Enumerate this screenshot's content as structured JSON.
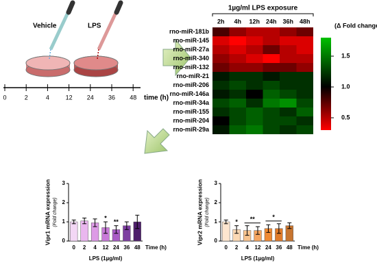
{
  "diagram": {
    "vehicle_label": "Vehicle",
    "lps_label": "LPS",
    "timeline_ticks": [
      "0",
      "2",
      "4",
      "12",
      "24",
      "36",
      "48"
    ],
    "time_label": "time (h)"
  },
  "chart_data": [
    {
      "type": "heatmap",
      "title": "1µg/ml LPS exposure",
      "colorbar_title": "(Δ Fold change)",
      "columns": [
        "2h",
        "4h",
        "12h",
        "24h",
        "36h",
        "48h"
      ],
      "rows": [
        "rno-miR-181b",
        "rno-miR-145",
        "rno-miR-27a",
        "rno-miR-340",
        "rno-miR-132",
        "rno-miR-21",
        "rno-miR-206",
        "rno-miR-146a",
        "rno-miR-34a",
        "rno-miR-155",
        "rno-miR-204",
        "rno-miR-29a"
      ],
      "values": [
        [
          0.8,
          0.6,
          0.5,
          0.5,
          0.6,
          0.7
        ],
        [
          0.4,
          0.3,
          0.4,
          0.5,
          0.4,
          0.4
        ],
        [
          0.5,
          0.4,
          0.5,
          0.7,
          0.5,
          0.4
        ],
        [
          0.6,
          0.5,
          0.4,
          0.3,
          0.5,
          0.5
        ],
        [
          0.7,
          0.6,
          0.6,
          0.7,
          0.7,
          0.6
        ],
        [
          1.1,
          1.2,
          1.2,
          1.1,
          1.2,
          1.2
        ],
        [
          1.2,
          1.3,
          1.2,
          1.3,
          1.2,
          1.2
        ],
        [
          1.1,
          1.2,
          1.0,
          1.4,
          1.3,
          1.2
        ],
        [
          1.3,
          1.4,
          1.2,
          1.5,
          1.6,
          1.3
        ],
        [
          1.2,
          1.3,
          1.4,
          1.3,
          1.2,
          1.4
        ],
        [
          1.0,
          1.3,
          1.4,
          1.3,
          1.3,
          1.2
        ],
        [
          1.1,
          1.4,
          1.5,
          1.3,
          1.2,
          1.3
        ]
      ],
      "zlim": [
        0.3,
        1.8
      ],
      "zticks": [
        0.5,
        {
          "value": 1,
          "label": "1.0"
        },
        1.5
      ],
      "low_color": "#ff0000",
      "mid_color": "#000000",
      "high_color": "#00c000"
    },
    {
      "type": "bar",
      "y_label": "Vipr1 mRNA expression",
      "y_sublabel": "(Fold change)",
      "x_label": "LPS (1µg/ml)",
      "x_unit_label": "Time (h)",
      "categories": [
        "0",
        "2",
        "4",
        "12",
        "24",
        "36",
        "48"
      ],
      "values": [
        1.0,
        1.05,
        0.95,
        0.7,
        0.6,
        0.8,
        1.0
      ],
      "errors": [
        0.1,
        0.15,
        0.2,
        0.3,
        0.2,
        0.2,
        0.35
      ],
      "colors": [
        "#f3d7f5",
        "#eab7ef",
        "#dd9be6",
        "#c97bd9",
        "#a95cc6",
        "#7d3ea1",
        "#4e1f6b"
      ],
      "significance": [
        null,
        null,
        null,
        "*",
        "**",
        null,
        null
      ],
      "ylim": [
        0,
        3
      ],
      "yticks": [
        0,
        1,
        2,
        3
      ]
    },
    {
      "type": "bar",
      "y_label": "Vipr2 mRNA expression",
      "y_sublabel": "(Fold change)",
      "x_label": "LPS (1µg/ml)",
      "x_unit_label": "Time (h)",
      "categories": [
        "0",
        "2",
        "4",
        "12",
        "24",
        "36",
        "48"
      ],
      "values": [
        1.0,
        0.6,
        0.55,
        0.55,
        0.65,
        0.65,
        0.8
      ],
      "errors": [
        0.1,
        0.2,
        0.25,
        0.2,
        0.2,
        0.25,
        0.15
      ],
      "colors": [
        "#fde6cf",
        "#fbd9b5",
        "#f8c48f",
        "#f5a560",
        "#f08a34",
        "#e07b2b",
        "#c8752f"
      ],
      "significance": [
        null,
        "*",
        null,
        null,
        null,
        null,
        null
      ],
      "brackets": [
        {
          "from": "4",
          "to": "12",
          "label": "**"
        },
        {
          "from": "24",
          "to": "36",
          "label": "*"
        }
      ],
      "ylim": [
        0,
        3
      ],
      "yticks": [
        0,
        1,
        2,
        3
      ]
    }
  ]
}
